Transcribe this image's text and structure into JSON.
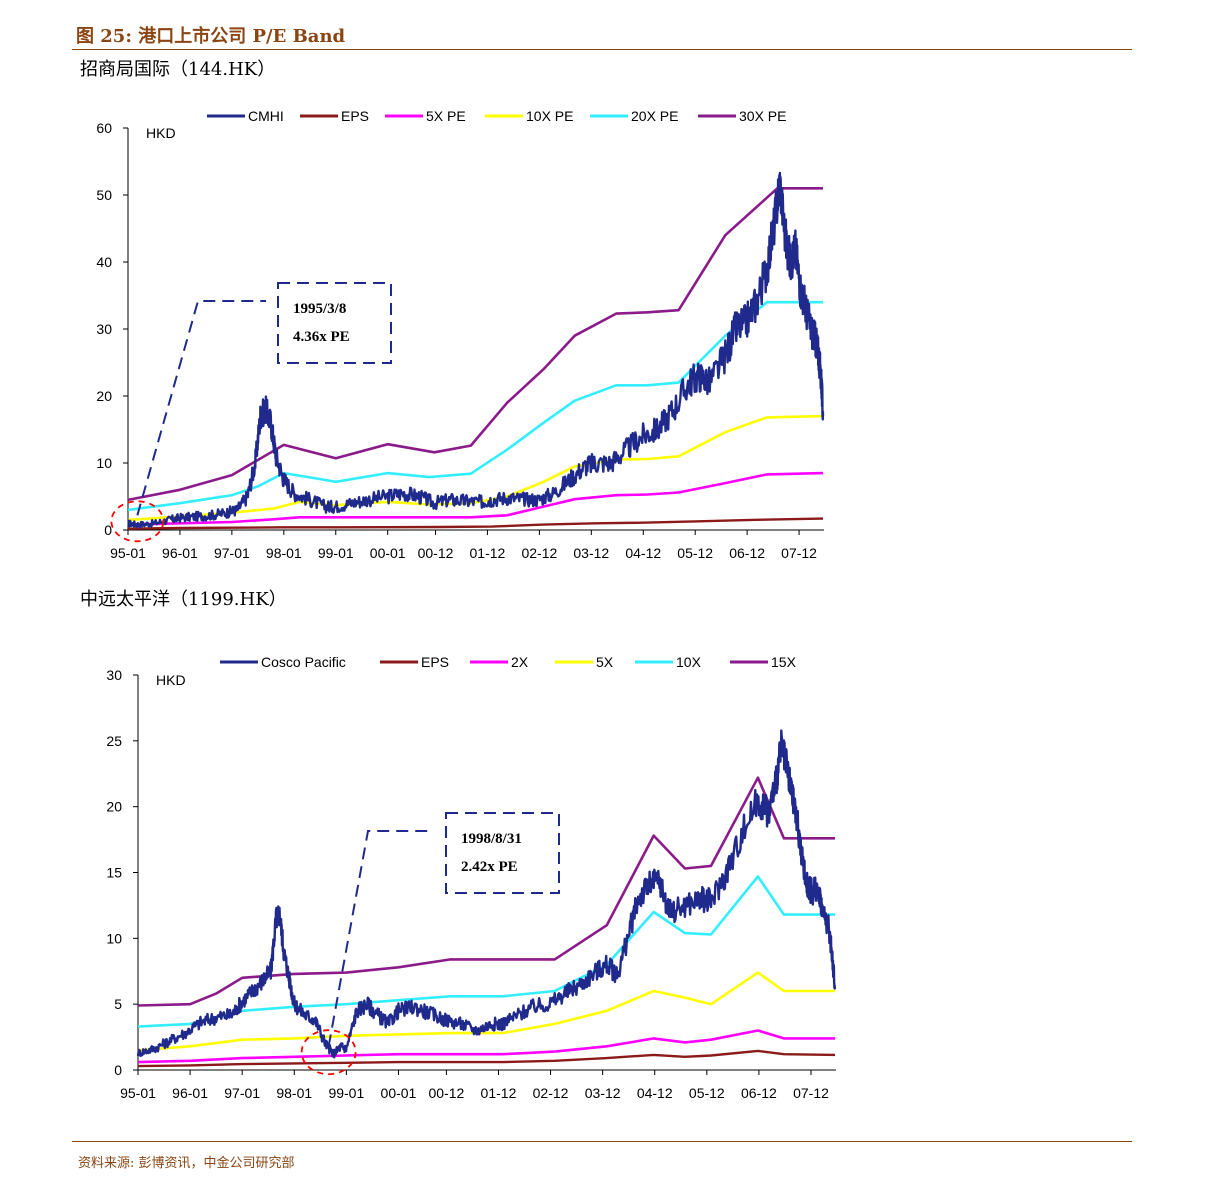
{
  "figure_title": "图 25:  港口上市公司 P/E Band",
  "source_note": "资料来源:    彭博资讯，中金公司研究部",
  "colors": {
    "title": "#8B4513",
    "navy": "#1F2A8C",
    "brown": "#8B1A1A",
    "magenta": "#FF00FF",
    "yellow": "#FFFF00",
    "cyan": "#33EEFF",
    "purple": "#8B1A8B",
    "circle": "#FF0000"
  },
  "chart_data": [
    {
      "type": "line",
      "title": "招商局国际（144.HK）",
      "ylabel": "HKD",
      "ylim": [
        0,
        60
      ],
      "yticks": [
        0,
        10,
        20,
        30,
        40,
        50,
        60
      ],
      "xlim": [
        1995.0,
        2008.4
      ],
      "xticks": [
        {
          "label": "95-01",
          "x": 1995.0
        },
        {
          "label": "96-01",
          "x": 1996.0
        },
        {
          "label": "97-01",
          "x": 1997.0
        },
        {
          "label": "98-01",
          "x": 1998.0
        },
        {
          "label": "99-01",
          "x": 1999.0
        },
        {
          "label": "00-01",
          "x": 2000.0
        },
        {
          "label": "00-12",
          "x": 2000.92
        },
        {
          "label": "01-12",
          "x": 2001.92
        },
        {
          "label": "02-12",
          "x": 2002.92
        },
        {
          "label": "03-12",
          "x": 2003.92
        },
        {
          "label": "04-12",
          "x": 2004.92
        },
        {
          "label": "05-12",
          "x": 2005.92
        },
        {
          "label": "06-12",
          "x": 2006.92
        },
        {
          "label": "07-12",
          "x": 2007.92
        }
      ],
      "legend": "top",
      "annotation": {
        "lines": [
          "1995/3/8",
          "4.36x PE"
        ],
        "x": 1995.18,
        "y": 1.0
      },
      "series": [
        {
          "name": "CMHI",
          "color": "#1F2A8C",
          "width": 2.4,
          "noise": 0.55,
          "x": [
            1995.0,
            1995.2,
            1995.5,
            1995.8,
            1996.0,
            1996.3,
            1996.6,
            1996.9,
            1997.1,
            1997.3,
            1997.45,
            1997.55,
            1997.65,
            1997.75,
            1997.85,
            1998.0,
            1998.2,
            1998.5,
            1998.8,
            1999.0,
            1999.3,
            1999.6,
            2000.0,
            2000.3,
            2000.6,
            2000.9,
            2001.2,
            2001.5,
            2001.8,
            2002.0,
            2002.3,
            2002.6,
            2002.9,
            2003.2,
            2003.5,
            2003.8,
            2004.0,
            2004.3,
            2004.6,
            2004.9,
            2005.2,
            2005.5,
            2005.8,
            2006.0,
            2006.2,
            2006.5,
            2006.7,
            2006.9,
            2007.1,
            2007.3,
            2007.45,
            2007.55,
            2007.65,
            2007.75,
            2007.85,
            2007.95,
            2008.05,
            2008.15,
            2008.25,
            2008.3,
            2008.35,
            2008.38
          ],
          "y": [
            1.0,
            0.8,
            1.0,
            1.5,
            1.8,
            2.0,
            2.2,
            2.6,
            3.0,
            5.0,
            10.0,
            17.0,
            18.0,
            16.0,
            11.0,
            7.5,
            5.5,
            4.5,
            3.5,
            3.5,
            4.0,
            4.5,
            5.0,
            5.5,
            5.0,
            4.0,
            4.5,
            4.3,
            4.2,
            4.5,
            4.8,
            4.6,
            4.5,
            5.5,
            7.5,
            9.5,
            10.0,
            10.0,
            12.0,
            14.0,
            15.0,
            18.0,
            22.0,
            23.0,
            22.0,
            26.0,
            30.0,
            31.0,
            34.0,
            39.0,
            46.0,
            52.0,
            44.0,
            40.0,
            42.0,
            36.0,
            33.0,
            30.0,
            28.0,
            26.0,
            22.0,
            17.0
          ]
        },
        {
          "name": "EPS",
          "color": "#8B1A1A",
          "width": 2.4,
          "noise": 0,
          "x": [
            1995.0,
            1996.0,
            1997.0,
            1998.0,
            1999.0,
            2000.0,
            2001.0,
            2002.0,
            2003.0,
            2004.0,
            2005.0,
            2006.0,
            2007.0,
            2008.38
          ],
          "y": [
            0.2,
            0.3,
            0.35,
            0.4,
            0.4,
            0.42,
            0.45,
            0.5,
            0.8,
            1.0,
            1.1,
            1.3,
            1.5,
            1.7
          ]
        },
        {
          "name": "5X PE",
          "color": "#FF00FF",
          "width": 2.6,
          "noise": 0,
          "x": [
            1995.0,
            1996.0,
            1997.0,
            1997.8,
            1998.3,
            1999.0,
            2000.0,
            2000.8,
            2001.6,
            2002.3,
            2003.0,
            2003.6,
            2004.4,
            2005.0,
            2005.6,
            2006.5,
            2007.3,
            2008.38
          ],
          "y": [
            0.8,
            1.0,
            1.2,
            1.6,
            1.9,
            1.9,
            1.9,
            1.9,
            1.9,
            2.2,
            3.5,
            4.6,
            5.2,
            5.3,
            5.6,
            7.0,
            8.3,
            8.5
          ]
        },
        {
          "name": "10X PE",
          "color": "#FFFF00",
          "width": 2.6,
          "noise": 0,
          "x": [
            1995.0,
            1996.0,
            1997.0,
            1997.8,
            1998.3,
            1999.0,
            2000.0,
            2000.8,
            2001.6,
            2002.3,
            2003.0,
            2003.6,
            2004.4,
            2005.0,
            2005.6,
            2006.5,
            2007.3,
            2008.38
          ],
          "y": [
            1.5,
            2.0,
            2.6,
            3.2,
            4.2,
            3.7,
            4.2,
            3.8,
            4.0,
            5.0,
            7.2,
            9.5,
            10.5,
            10.6,
            11.0,
            14.6,
            16.8,
            17.0
          ]
        },
        {
          "name": "20X PE",
          "color": "#33EEFF",
          "width": 2.6,
          "noise": 0,
          "x": [
            1995.0,
            1996.0,
            1997.0,
            1997.5,
            1998.0,
            1998.7,
            1999.0,
            2000.0,
            2000.8,
            2001.6,
            2002.3,
            2003.0,
            2003.6,
            2004.4,
            2005.0,
            2005.6,
            2006.5,
            2007.3,
            2008.38
          ],
          "y": [
            3.0,
            4.0,
            5.2,
            6.5,
            8.5,
            7.6,
            7.2,
            8.5,
            7.9,
            8.4,
            12.0,
            16.0,
            19.3,
            21.6,
            21.6,
            22.0,
            29.0,
            34.0,
            34.0
          ]
        },
        {
          "name": "30X PE",
          "color": "#8B1A8B",
          "width": 2.6,
          "noise": 0,
          "x": [
            1995.0,
            1996.0,
            1997.0,
            1998.0,
            1999.0,
            2000.0,
            2000.9,
            2001.6,
            2002.3,
            2003.0,
            2003.6,
            2004.4,
            2005.0,
            2005.6,
            2006.5,
            2007.5,
            2008.38
          ],
          "y": [
            4.5,
            6.0,
            8.2,
            12.7,
            10.7,
            12.8,
            11.6,
            12.6,
            19.0,
            24.0,
            29.0,
            32.3,
            32.5,
            32.8,
            44.0,
            51.0,
            51.0
          ]
        }
      ]
    },
    {
      "type": "line",
      "title": "中远太平洋（1199.HK）",
      "ylabel": "HKD",
      "ylim": [
        0,
        30
      ],
      "yticks": [
        0,
        5,
        10,
        15,
        20,
        25,
        30
      ],
      "xlim": [
        1995.0,
        2008.4
      ],
      "xticks": [
        {
          "label": "95-01",
          "x": 1995.0
        },
        {
          "label": "96-01",
          "x": 1996.0
        },
        {
          "label": "97-01",
          "x": 1997.0
        },
        {
          "label": "98-01",
          "x": 1998.0
        },
        {
          "label": "99-01",
          "x": 1999.0
        },
        {
          "label": "00-01",
          "x": 2000.0
        },
        {
          "label": "00-12",
          "x": 2000.92
        },
        {
          "label": "01-12",
          "x": 2001.92
        },
        {
          "label": "02-12",
          "x": 2002.92
        },
        {
          "label": "03-12",
          "x": 2003.92
        },
        {
          "label": "04-12",
          "x": 2004.92
        },
        {
          "label": "05-12",
          "x": 2005.92
        },
        {
          "label": "06-12",
          "x": 2006.92
        },
        {
          "label": "07-12",
          "x": 2007.92
        }
      ],
      "legend": "top",
      "annotation": {
        "lines": [
          "1998/8/31",
          "2.42x PE"
        ],
        "x": 1998.66,
        "y": 1.2
      },
      "series": [
        {
          "name": "Cosco Pacific",
          "color": "#1F2A8C",
          "width": 2.4,
          "noise": 0.3,
          "x": [
            1995.0,
            1995.3,
            1995.6,
            1995.9,
            1996.2,
            1996.5,
            1996.8,
            1997.0,
            1997.2,
            1997.4,
            1997.55,
            1997.65,
            1997.72,
            1997.8,
            1997.9,
            1998.0,
            1998.2,
            1998.4,
            1998.6,
            1998.75,
            1998.9,
            1999.0,
            1999.2,
            1999.4,
            1999.6,
            1999.8,
            2000.0,
            2000.3,
            2000.6,
            2000.9,
            2001.2,
            2001.5,
            2001.8,
            2002.0,
            2002.3,
            2002.6,
            2002.9,
            2003.2,
            2003.5,
            2003.8,
            2004.0,
            2004.2,
            2004.4,
            2004.6,
            2004.8,
            2005.0,
            2005.2,
            2005.5,
            2005.8,
            2006.0,
            2006.3,
            2006.6,
            2006.9,
            2007.1,
            2007.25,
            2007.35,
            2007.45,
            2007.55,
            2007.65,
            2007.75,
            2007.85,
            2007.95,
            2008.05,
            2008.15,
            2008.25,
            2008.32,
            2008.38
          ],
          "y": [
            1.3,
            1.6,
            2.2,
            2.8,
            3.6,
            4.0,
            4.2,
            5.2,
            6.0,
            6.8,
            7.5,
            11.5,
            11.8,
            9.0,
            7.0,
            5.0,
            4.2,
            3.8,
            2.0,
            1.2,
            1.8,
            1.6,
            4.5,
            5.0,
            4.2,
            3.5,
            4.5,
            4.8,
            4.3,
            3.8,
            3.5,
            3.0,
            3.5,
            3.5,
            4.2,
            4.8,
            5.0,
            5.8,
            6.5,
            7.5,
            8.0,
            7.2,
            10.0,
            13.0,
            14.0,
            14.5,
            12.0,
            12.5,
            13.0,
            12.8,
            15.0,
            18.0,
            20.5,
            19.5,
            22.0,
            24.5,
            23.0,
            21.0,
            19.0,
            16.0,
            14.0,
            13.5,
            14.0,
            12.0,
            11.0,
            9.0,
            6.3
          ]
        },
        {
          "name": "EPS",
          "color": "#8B1A1A",
          "width": 2.4,
          "noise": 0,
          "x": [
            1995.0,
            1996.0,
            1997.0,
            1998.0,
            1999.0,
            2000.0,
            2001.0,
            2002.0,
            2003.0,
            2004.0,
            2004.9,
            2005.5,
            2006.0,
            2006.9,
            2007.4,
            2008.38
          ],
          "y": [
            0.3,
            0.35,
            0.45,
            0.5,
            0.55,
            0.6,
            0.6,
            0.6,
            0.7,
            0.9,
            1.15,
            1.0,
            1.1,
            1.45,
            1.2,
            1.15
          ]
        },
        {
          "name": "2X",
          "color": "#FF00FF",
          "width": 2.6,
          "noise": 0,
          "x": [
            1995.0,
            1996.0,
            1997.0,
            1998.0,
            1999.0,
            2000.0,
            2001.0,
            2002.0,
            2003.0,
            2004.0,
            2004.9,
            2005.5,
            2006.0,
            2006.9,
            2007.4,
            2008.38
          ],
          "y": [
            0.6,
            0.7,
            0.9,
            1.0,
            1.1,
            1.2,
            1.2,
            1.2,
            1.4,
            1.8,
            2.4,
            2.1,
            2.3,
            3.0,
            2.4,
            2.4
          ]
        },
        {
          "name": "5X",
          "color": "#FFFF00",
          "width": 2.6,
          "noise": 0,
          "x": [
            1995.0,
            1996.0,
            1997.0,
            1998.0,
            1999.0,
            2000.0,
            2001.0,
            2002.0,
            2003.0,
            2004.0,
            2004.9,
            2005.5,
            2006.0,
            2006.9,
            2007.4,
            2008.38
          ],
          "y": [
            1.5,
            1.8,
            2.3,
            2.4,
            2.6,
            2.7,
            2.8,
            2.8,
            3.5,
            4.5,
            6.0,
            5.5,
            5.0,
            7.4,
            6.0,
            6.0
          ]
        },
        {
          "name": "10X",
          "color": "#33EEFF",
          "width": 2.6,
          "noise": 0,
          "x": [
            1995.0,
            1996.0,
            1997.0,
            1998.0,
            1999.0,
            2000.0,
            2001.0,
            2002.0,
            2003.0,
            2004.0,
            2004.9,
            2005.5,
            2006.0,
            2006.9,
            2007.4,
            2008.38
          ],
          "y": [
            3.3,
            3.5,
            4.5,
            4.8,
            5.0,
            5.3,
            5.6,
            5.6,
            6.0,
            8.0,
            12.0,
            10.4,
            10.3,
            14.7,
            11.8,
            11.8
          ]
        },
        {
          "name": "15X",
          "color": "#8B1A8B",
          "width": 2.6,
          "noise": 0,
          "x": [
            1995.0,
            1996.0,
            1996.5,
            1997.0,
            1998.0,
            1999.0,
            2000.0,
            2001.0,
            2002.0,
            2003.0,
            2004.0,
            2004.9,
            2005.5,
            2006.0,
            2006.9,
            2007.4,
            2008.38
          ],
          "y": [
            4.9,
            5.0,
            5.8,
            7.0,
            7.3,
            7.4,
            7.8,
            8.4,
            8.4,
            8.4,
            11.0,
            17.8,
            15.3,
            15.5,
            22.2,
            17.6,
            17.6
          ]
        }
      ]
    }
  ]
}
